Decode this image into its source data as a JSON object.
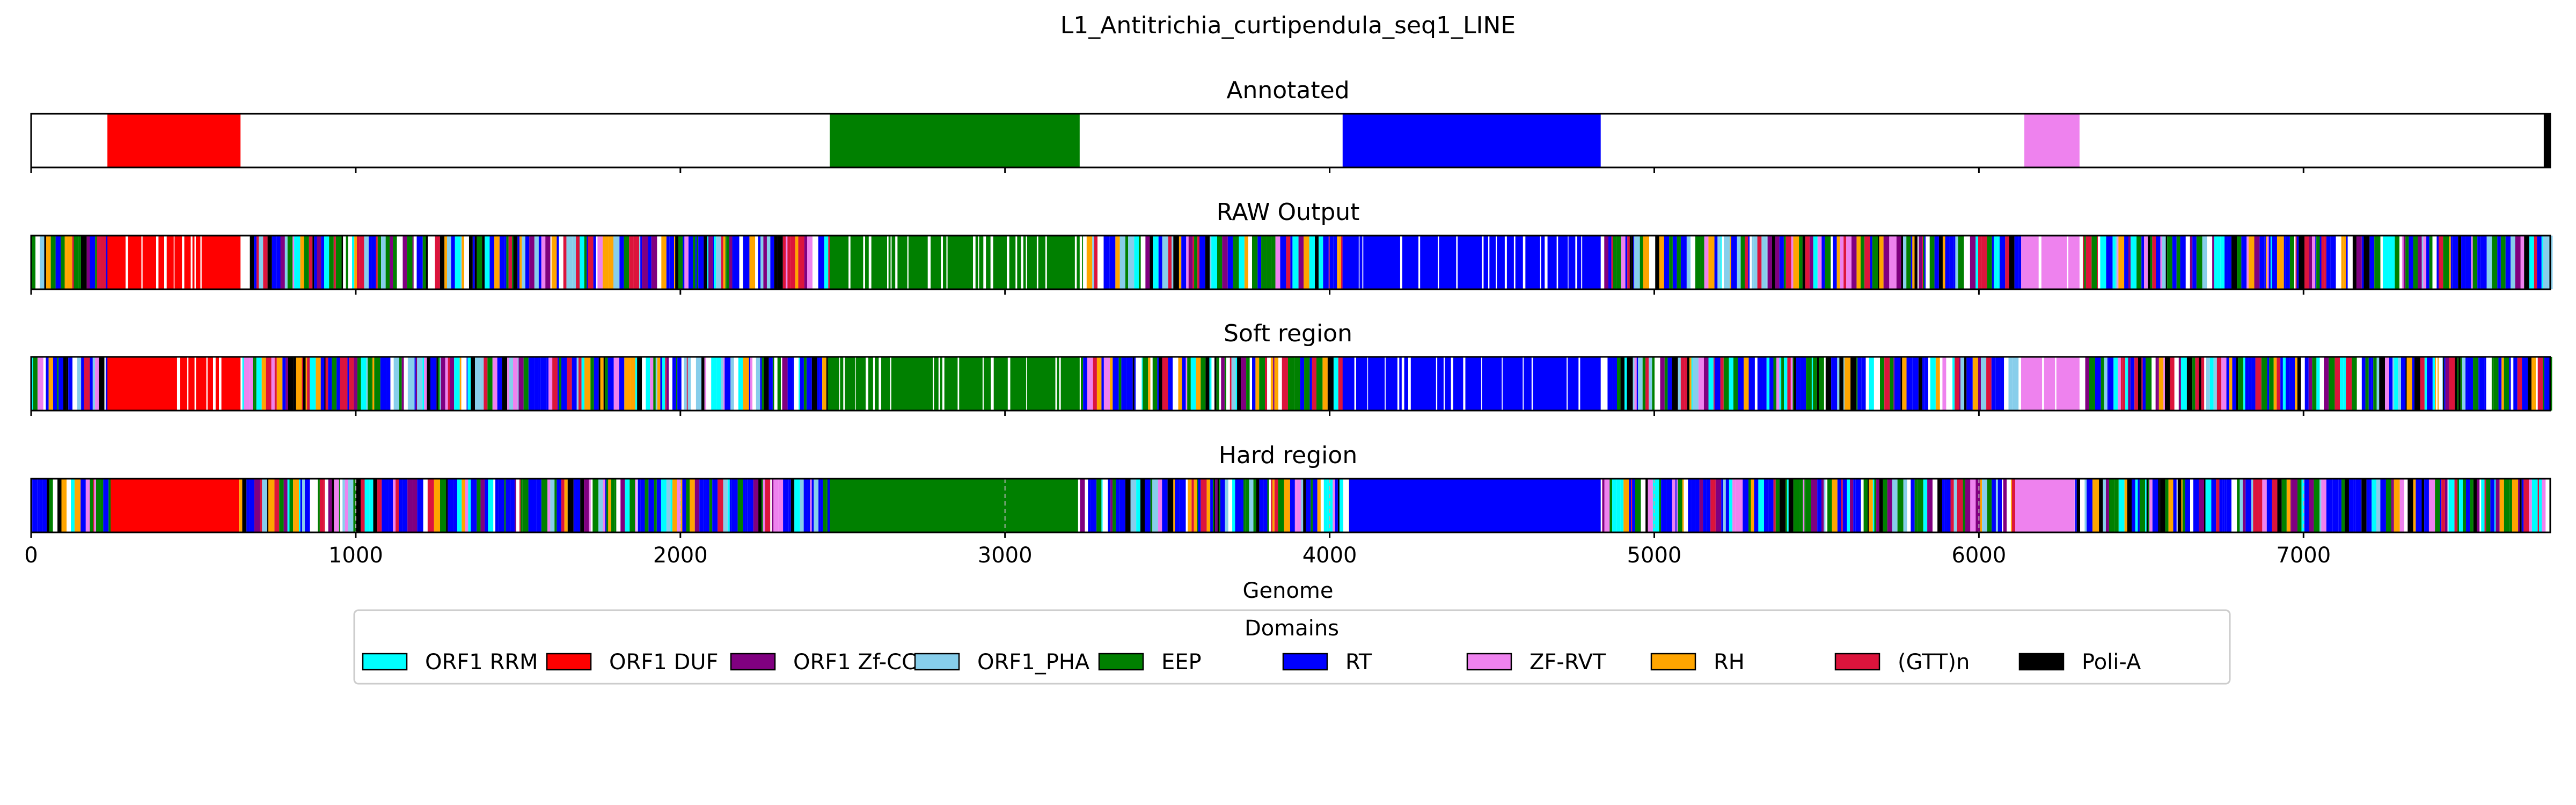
{
  "chart_data": {
    "type": "genome-track",
    "title": "L1_Antitrichia_curtipendula_seq1_LINE",
    "xlabel": "Genome",
    "xlim": [
      0,
      7760
    ],
    "x_ticks": [
      0,
      1000,
      2000,
      3000,
      4000,
      5000,
      6000,
      7000
    ],
    "x_tick_labels": [
      "0",
      "1000",
      "2000",
      "3000",
      "4000",
      "5000",
      "6000",
      "7000"
    ],
    "legend": {
      "title": "Domains",
      "placement": "bottom-center",
      "entries": [
        {
          "label": "ORF1 RRM",
          "color": "#00ffff"
        },
        {
          "label": "ORF1 DUF",
          "color": "#ff0000"
        },
        {
          "label": "ORF1 Zf-CCHC",
          "color": "#800080"
        },
        {
          "label": "ORF1_PHA",
          "color": "#87ceeb"
        },
        {
          "label": "EEP",
          "color": "#008000"
        },
        {
          "label": "RT",
          "color": "#0000ff"
        },
        {
          "label": "ZF-RVT",
          "color": "#ee82ee"
        },
        {
          "label": "RH",
          "color": "#ffa500"
        },
        {
          "label": "(GTT)n",
          "color": "#dc143c"
        },
        {
          "label": "Poli-A",
          "color": "#000000"
        }
      ]
    },
    "panels": [
      {
        "title": "Annotated",
        "segments": [
          {
            "domain": "ORF1 DUF",
            "start": 235,
            "end": 645
          },
          {
            "domain": "EEP",
            "start": 2460,
            "end": 3230
          },
          {
            "domain": "RT",
            "start": 4040,
            "end": 4835
          },
          {
            "domain": "ZF-RVT",
            "start": 6140,
            "end": 6310
          },
          {
            "domain": "Poli-A",
            "start": 7740,
            "end": 7760
          }
        ]
      },
      {
        "title": "RAW Output",
        "noisy": true,
        "regions": [
          {
            "domain": "ORF1 DUF",
            "start": 235,
            "end": 645
          },
          {
            "domain": "EEP",
            "start": 2460,
            "end": 3230
          },
          {
            "domain": "RT",
            "start": 4040,
            "end": 4835
          },
          {
            "domain": "ZF-RVT",
            "start": 6130,
            "end": 6310
          }
        ]
      },
      {
        "title": "Soft region",
        "noisy": true,
        "regions": [
          {
            "domain": "ORF1 DUF",
            "start": 235,
            "end": 645
          },
          {
            "domain": "EEP",
            "start": 2460,
            "end": 3230
          },
          {
            "domain": "RT",
            "start": 4040,
            "end": 4835
          },
          {
            "domain": "ZF-RVT",
            "start": 6130,
            "end": 6310
          }
        ]
      },
      {
        "title": "Hard region",
        "noisy": true,
        "regions": [
          {
            "domain": "ORF1 DUF",
            "start": 245,
            "end": 640
          },
          {
            "domain": "EEP",
            "start": 2460,
            "end": 3225
          },
          {
            "domain": "RT",
            "start": 4060,
            "end": 4835
          },
          {
            "domain": "ZF-RVT",
            "start": 6115,
            "end": 6295
          }
        ]
      }
    ]
  }
}
